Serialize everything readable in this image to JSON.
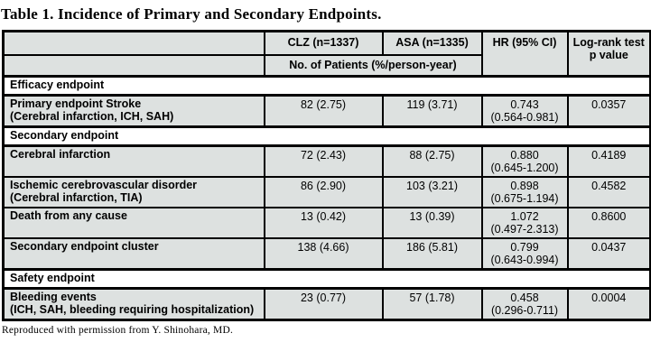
{
  "title": "Table 1. Incidence of Primary and Secondary Endpoints.",
  "footer": "Reproduced with permission from Y. Shinohara, MD.",
  "colors": {
    "cell_bg": "#dde1e0",
    "section_bg": "#ffffff",
    "border": "#000000"
  },
  "table": {
    "col_headers": {
      "clz": "CLZ (n=1337)",
      "asa": "ASA (n=1335)",
      "hr": "HR (95% CI)",
      "p": "Log-rank test\np value"
    },
    "subheader": "No. of Patients (%/person-year)",
    "rows": [
      {
        "type": "section",
        "label": "Efficacy endpoint"
      },
      {
        "type": "data",
        "label": "Primary endpoint Stroke",
        "sublabel": "(Cerebral infarction, ICH, SAH)",
        "clz": "82 (2.75)",
        "asa": "119 (3.71)",
        "hr": "0.743",
        "ci": "(0.564-0.981)",
        "p": "0.0357"
      },
      {
        "type": "section",
        "label": "Secondary endpoint"
      },
      {
        "type": "data",
        "label": "Cerebral infarction",
        "sublabel": "",
        "clz": "72 (2.43)",
        "asa": "88 (2.75)",
        "hr": "0.880",
        "ci": "(0.645-1.200)",
        "p": "0.4189"
      },
      {
        "type": "data",
        "label": "Ischemic cerebrovascular disorder",
        "sublabel": "(Cerebral infarction, TIA)",
        "clz": "86 (2.90)",
        "asa": "103 (3.21)",
        "hr": "0.898",
        "ci": "(0.675-1.194)",
        "p": "0.4582"
      },
      {
        "type": "data",
        "label": "Death from any cause",
        "sublabel": "",
        "clz": "13 (0.42)",
        "asa": "13 (0.39)",
        "hr": "1.072",
        "ci": "(0.497-2.313)",
        "p": "0.8600"
      },
      {
        "type": "data",
        "label": "Secondary endpoint cluster",
        "sublabel": "",
        "clz": "138 (4.66)",
        "asa": "186 (5.81)",
        "hr": "0.799",
        "ci": "(0.643-0.994)",
        "p": "0.0437"
      },
      {
        "type": "section",
        "label": "Safety endpoint"
      },
      {
        "type": "data",
        "label": "Bleeding events",
        "sublabel": "(ICH, SAH, bleeding requiring hospitalization)",
        "clz": "23 (0.77)",
        "asa": "57 (1.78)",
        "hr": "0.458",
        "ci": "(0.296-0.711)",
        "p": "0.0004"
      }
    ]
  }
}
